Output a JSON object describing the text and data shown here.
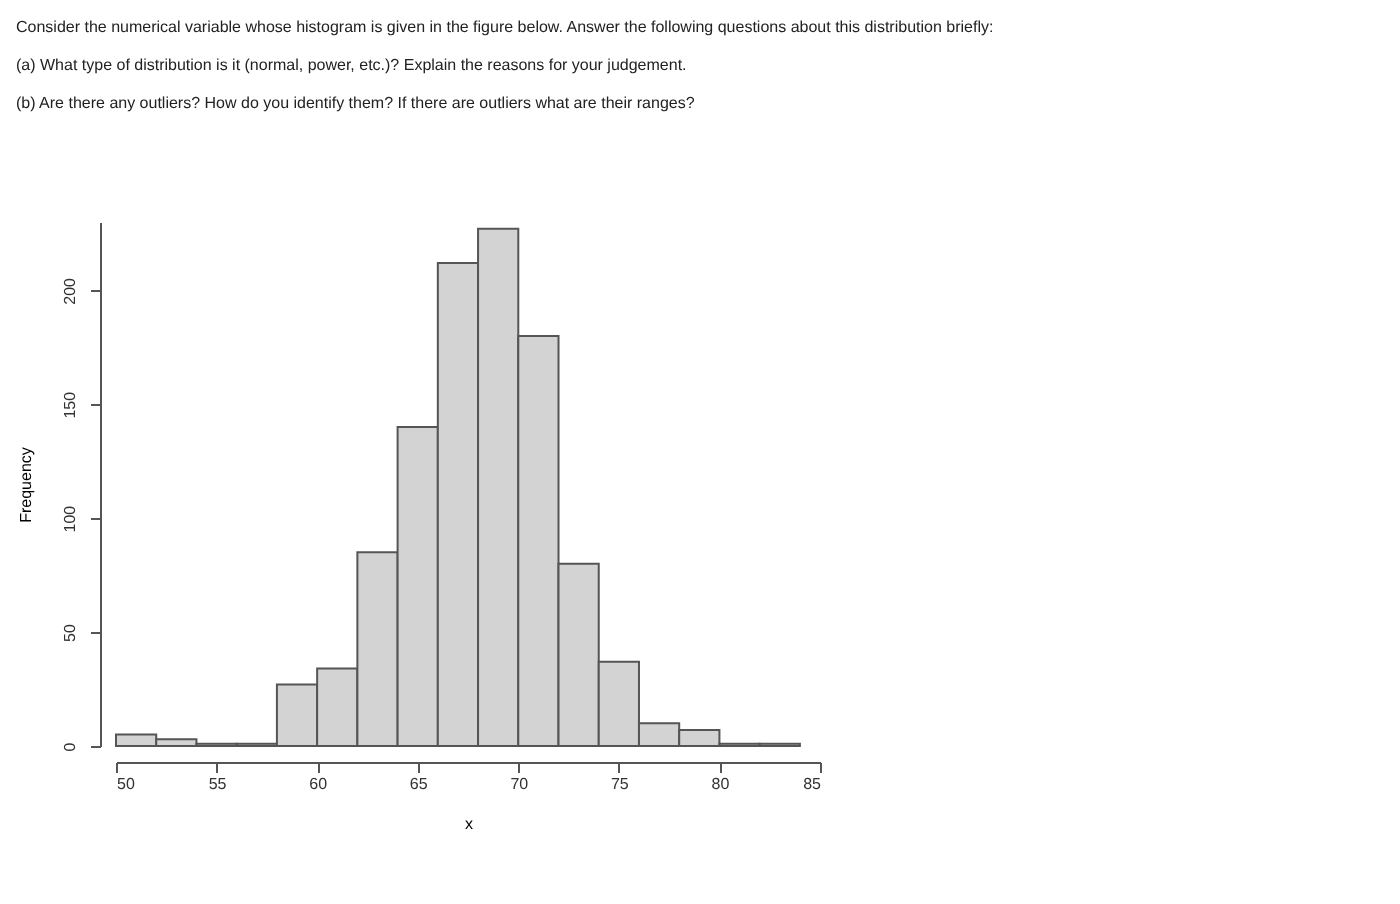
{
  "chart_data": {
    "type": "histogram",
    "annotations": [
      "Consider the numerical variable whose histogram is given in the figure below. Answer the following questions about this distribution briefly:",
      "(a) What type of distribution is it (normal, power, etc.)? Explain the reasons for your judgement.",
      "(b) Are there any outliers? How do you identify them? If there are outliers what are their ranges?"
    ],
    "xlabel": "x",
    "ylabel": "Frequency",
    "bins": [
      50,
      52,
      54,
      56,
      58,
      60,
      62,
      64,
      66,
      68,
      70,
      72,
      74,
      76,
      78,
      80,
      82,
      84
    ],
    "values": [
      5,
      3,
      1,
      1,
      27,
      34,
      85,
      140,
      212,
      227,
      180,
      80,
      37,
      10,
      7,
      1,
      1
    ],
    "color": "#d3d3d3",
    "xlim": [
      50,
      85
    ],
    "xticks": [
      50,
      55,
      60,
      65,
      70,
      75,
      80,
      85
    ],
    "ylim": [
      0,
      230
    ],
    "yticks": [
      0,
      50,
      100,
      150,
      200
    ],
    "grid": false
  }
}
